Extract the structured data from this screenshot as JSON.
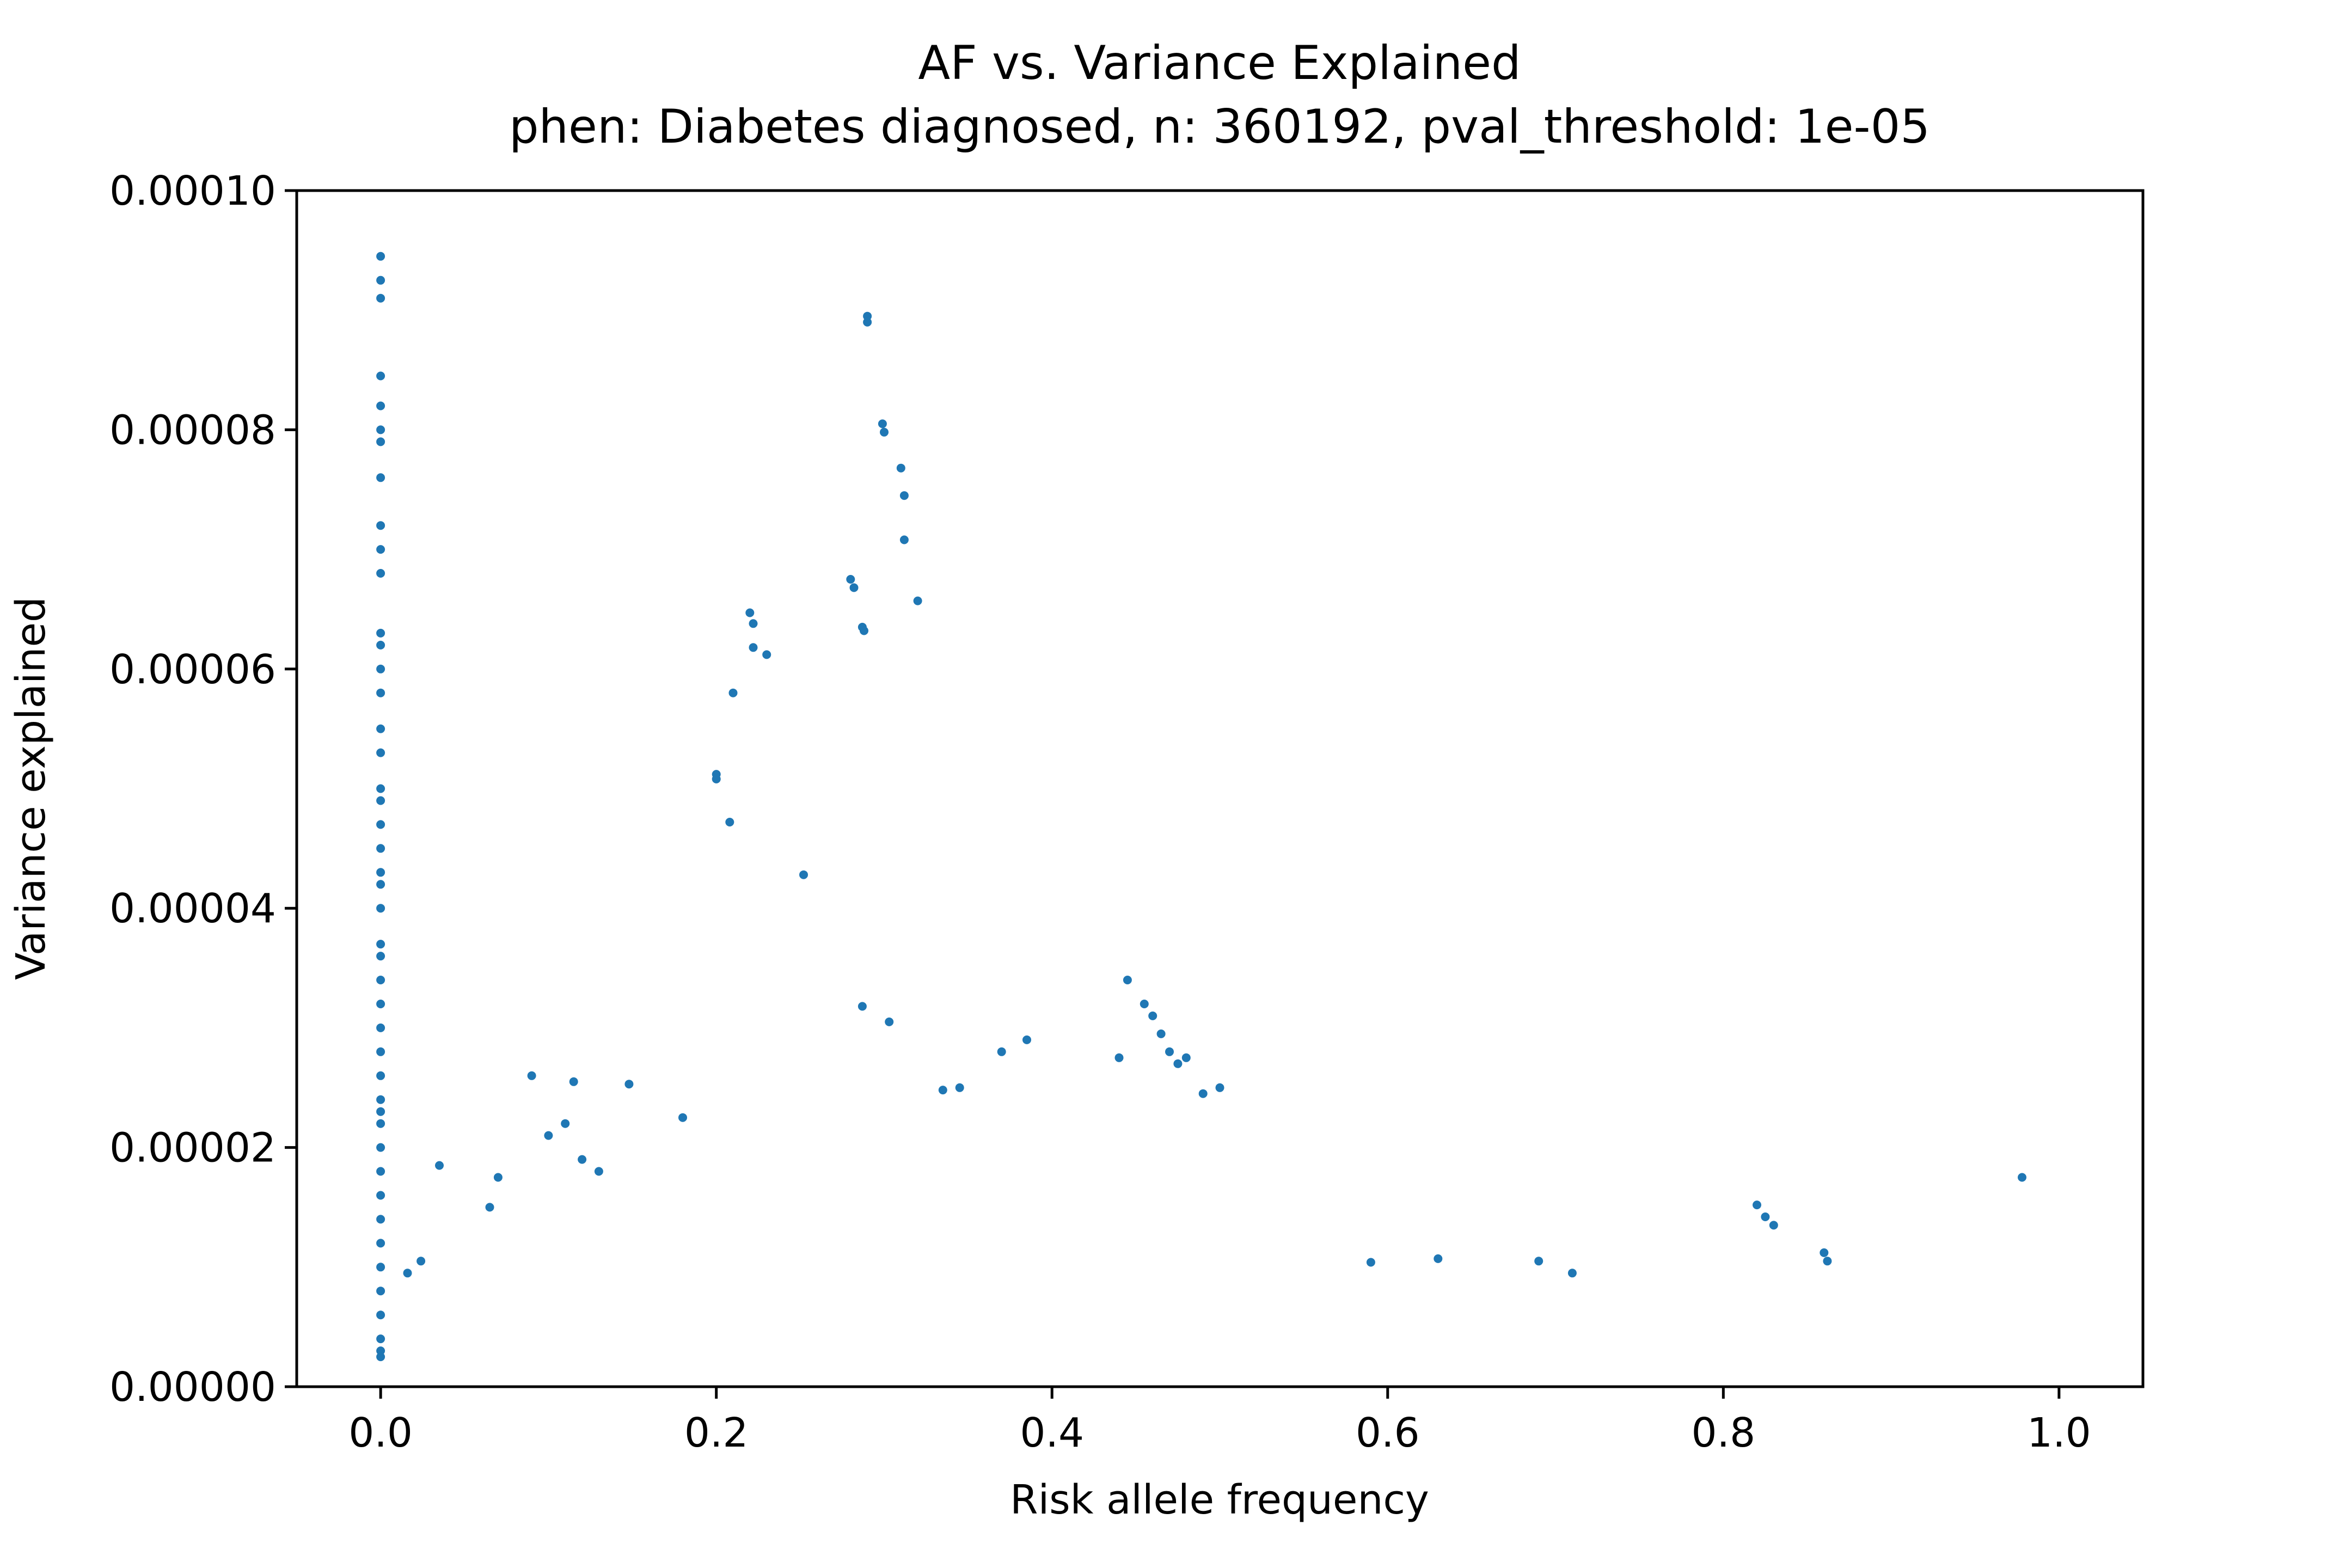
{
  "chart_data": {
    "type": "scatter",
    "title": "AF vs. Variance Explained",
    "subtitle": "phen: Diabetes diagnosed, n: 360192, pval_threshold: 1e-05",
    "xlabel": "Risk allele frequency",
    "ylabel": "Variance explained",
    "xlim": [
      -0.05,
      1.05
    ],
    "ylim": [
      0,
      0.0001
    ],
    "xticks": [
      0.0,
      0.2,
      0.4,
      0.6,
      0.8,
      1.0
    ],
    "xtick_labels": [
      "0.0",
      "0.2",
      "0.4",
      "0.6",
      "0.8",
      "1.0"
    ],
    "yticks": [
      0,
      2e-05,
      4e-05,
      6e-05,
      8e-05,
      0.0001
    ],
    "ytick_labels": [
      "0.00000",
      "0.00002",
      "0.00004",
      "0.00006",
      "0.00008",
      "0.00010"
    ],
    "grid": false,
    "point_color": "#1f77b4",
    "series": [
      {
        "points": [
          [
            0.0,
            9.45e-05
          ],
          [
            0.0,
            9.25e-05
          ],
          [
            0.0,
            9.1e-05
          ],
          [
            0.0,
            8.45e-05
          ],
          [
            0.0,
            8.2e-05
          ],
          [
            0.0,
            8e-05
          ],
          [
            0.0,
            7.9e-05
          ],
          [
            0.0,
            7.6e-05
          ],
          [
            0.0,
            7.2e-05
          ],
          [
            0.0,
            7e-05
          ],
          [
            0.0,
            6.8e-05
          ],
          [
            0.0,
            6.3e-05
          ],
          [
            0.0,
            6.2e-05
          ],
          [
            0.0,
            6e-05
          ],
          [
            0.0,
            5.8e-05
          ],
          [
            0.0,
            5.5e-05
          ],
          [
            0.0,
            5.3e-05
          ],
          [
            0.0,
            5e-05
          ],
          [
            0.0,
            4.9e-05
          ],
          [
            0.0,
            4.7e-05
          ],
          [
            0.0,
            4.5e-05
          ],
          [
            0.0,
            4.3e-05
          ],
          [
            0.0,
            4.2e-05
          ],
          [
            0.0,
            4e-05
          ],
          [
            0.0,
            3.7e-05
          ],
          [
            0.0,
            3.6e-05
          ],
          [
            0.0,
            3.4e-05
          ],
          [
            0.0,
            3.2e-05
          ],
          [
            0.0,
            3e-05
          ],
          [
            0.0,
            2.8e-05
          ],
          [
            0.0,
            2.6e-05
          ],
          [
            0.0,
            2.4e-05
          ],
          [
            0.0,
            2.3e-05
          ],
          [
            0.0,
            2.2e-05
          ],
          [
            0.0,
            2e-05
          ],
          [
            0.0,
            1.8e-05
          ],
          [
            0.0,
            1.6e-05
          ],
          [
            0.0,
            1.4e-05
          ],
          [
            0.0,
            1.2e-05
          ],
          [
            0.0,
            1e-05
          ],
          [
            0.0,
            8e-06
          ],
          [
            0.0,
            6e-06
          ],
          [
            0.0,
            4e-06
          ],
          [
            0.0,
            3e-06
          ],
          [
            0.0,
            2.5e-06
          ],
          [
            0.29,
            8.95e-05
          ],
          [
            0.29,
            8.9e-05
          ],
          [
            0.299,
            8.05e-05
          ],
          [
            0.3,
            7.98e-05
          ],
          [
            0.31,
            7.68e-05
          ],
          [
            0.312,
            7.45e-05
          ],
          [
            0.312,
            7.08e-05
          ],
          [
            0.32,
            6.57e-05
          ],
          [
            0.28,
            6.75e-05
          ],
          [
            0.282,
            6.68e-05
          ],
          [
            0.287,
            6.35e-05
          ],
          [
            0.288,
            6.32e-05
          ],
          [
            0.22,
            6.47e-05
          ],
          [
            0.222,
            6.38e-05
          ],
          [
            0.222,
            6.18e-05
          ],
          [
            0.23,
            6.12e-05
          ],
          [
            0.21,
            5.8e-05
          ],
          [
            0.2,
            5.12e-05
          ],
          [
            0.2,
            5.08e-05
          ],
          [
            0.208,
            4.72e-05
          ],
          [
            0.252,
            4.28e-05
          ],
          [
            0.287,
            3.18e-05
          ],
          [
            0.303,
            3.05e-05
          ],
          [
            0.445,
            3.4e-05
          ],
          [
            0.455,
            3.2e-05
          ],
          [
            0.46,
            3.1e-05
          ],
          [
            0.465,
            2.95e-05
          ],
          [
            0.47,
            2.8e-05
          ],
          [
            0.475,
            2.7e-05
          ],
          [
            0.48,
            2.75e-05
          ],
          [
            0.385,
            2.9e-05
          ],
          [
            0.37,
            2.8e-05
          ],
          [
            0.335,
            2.48e-05
          ],
          [
            0.345,
            2.5e-05
          ],
          [
            0.44,
            2.75e-05
          ],
          [
            0.5,
            2.5e-05
          ],
          [
            0.49,
            2.45e-05
          ],
          [
            0.978,
            1.75e-05
          ],
          [
            0.09,
            2.6e-05
          ],
          [
            0.11,
            2.2e-05
          ],
          [
            0.1,
            2.1e-05
          ],
          [
            0.115,
            2.55e-05
          ],
          [
            0.148,
            2.53e-05
          ],
          [
            0.12,
            1.9e-05
          ],
          [
            0.13,
            1.8e-05
          ],
          [
            0.035,
            1.85e-05
          ],
          [
            0.07,
            1.75e-05
          ],
          [
            0.065,
            1.5e-05
          ],
          [
            0.18,
            2.25e-05
          ],
          [
            0.82,
            1.52e-05
          ],
          [
            0.825,
            1.42e-05
          ],
          [
            0.83,
            1.35e-05
          ],
          [
            0.86,
            1.12e-05
          ],
          [
            0.862,
            1.05e-05
          ],
          [
            0.63,
            1.07e-05
          ],
          [
            0.59,
            1.04e-05
          ],
          [
            0.69,
            1.05e-05
          ],
          [
            0.71,
            9.5e-06
          ],
          [
            0.016,
            9.5e-06
          ],
          [
            0.024,
            1.05e-05
          ]
        ]
      }
    ]
  }
}
